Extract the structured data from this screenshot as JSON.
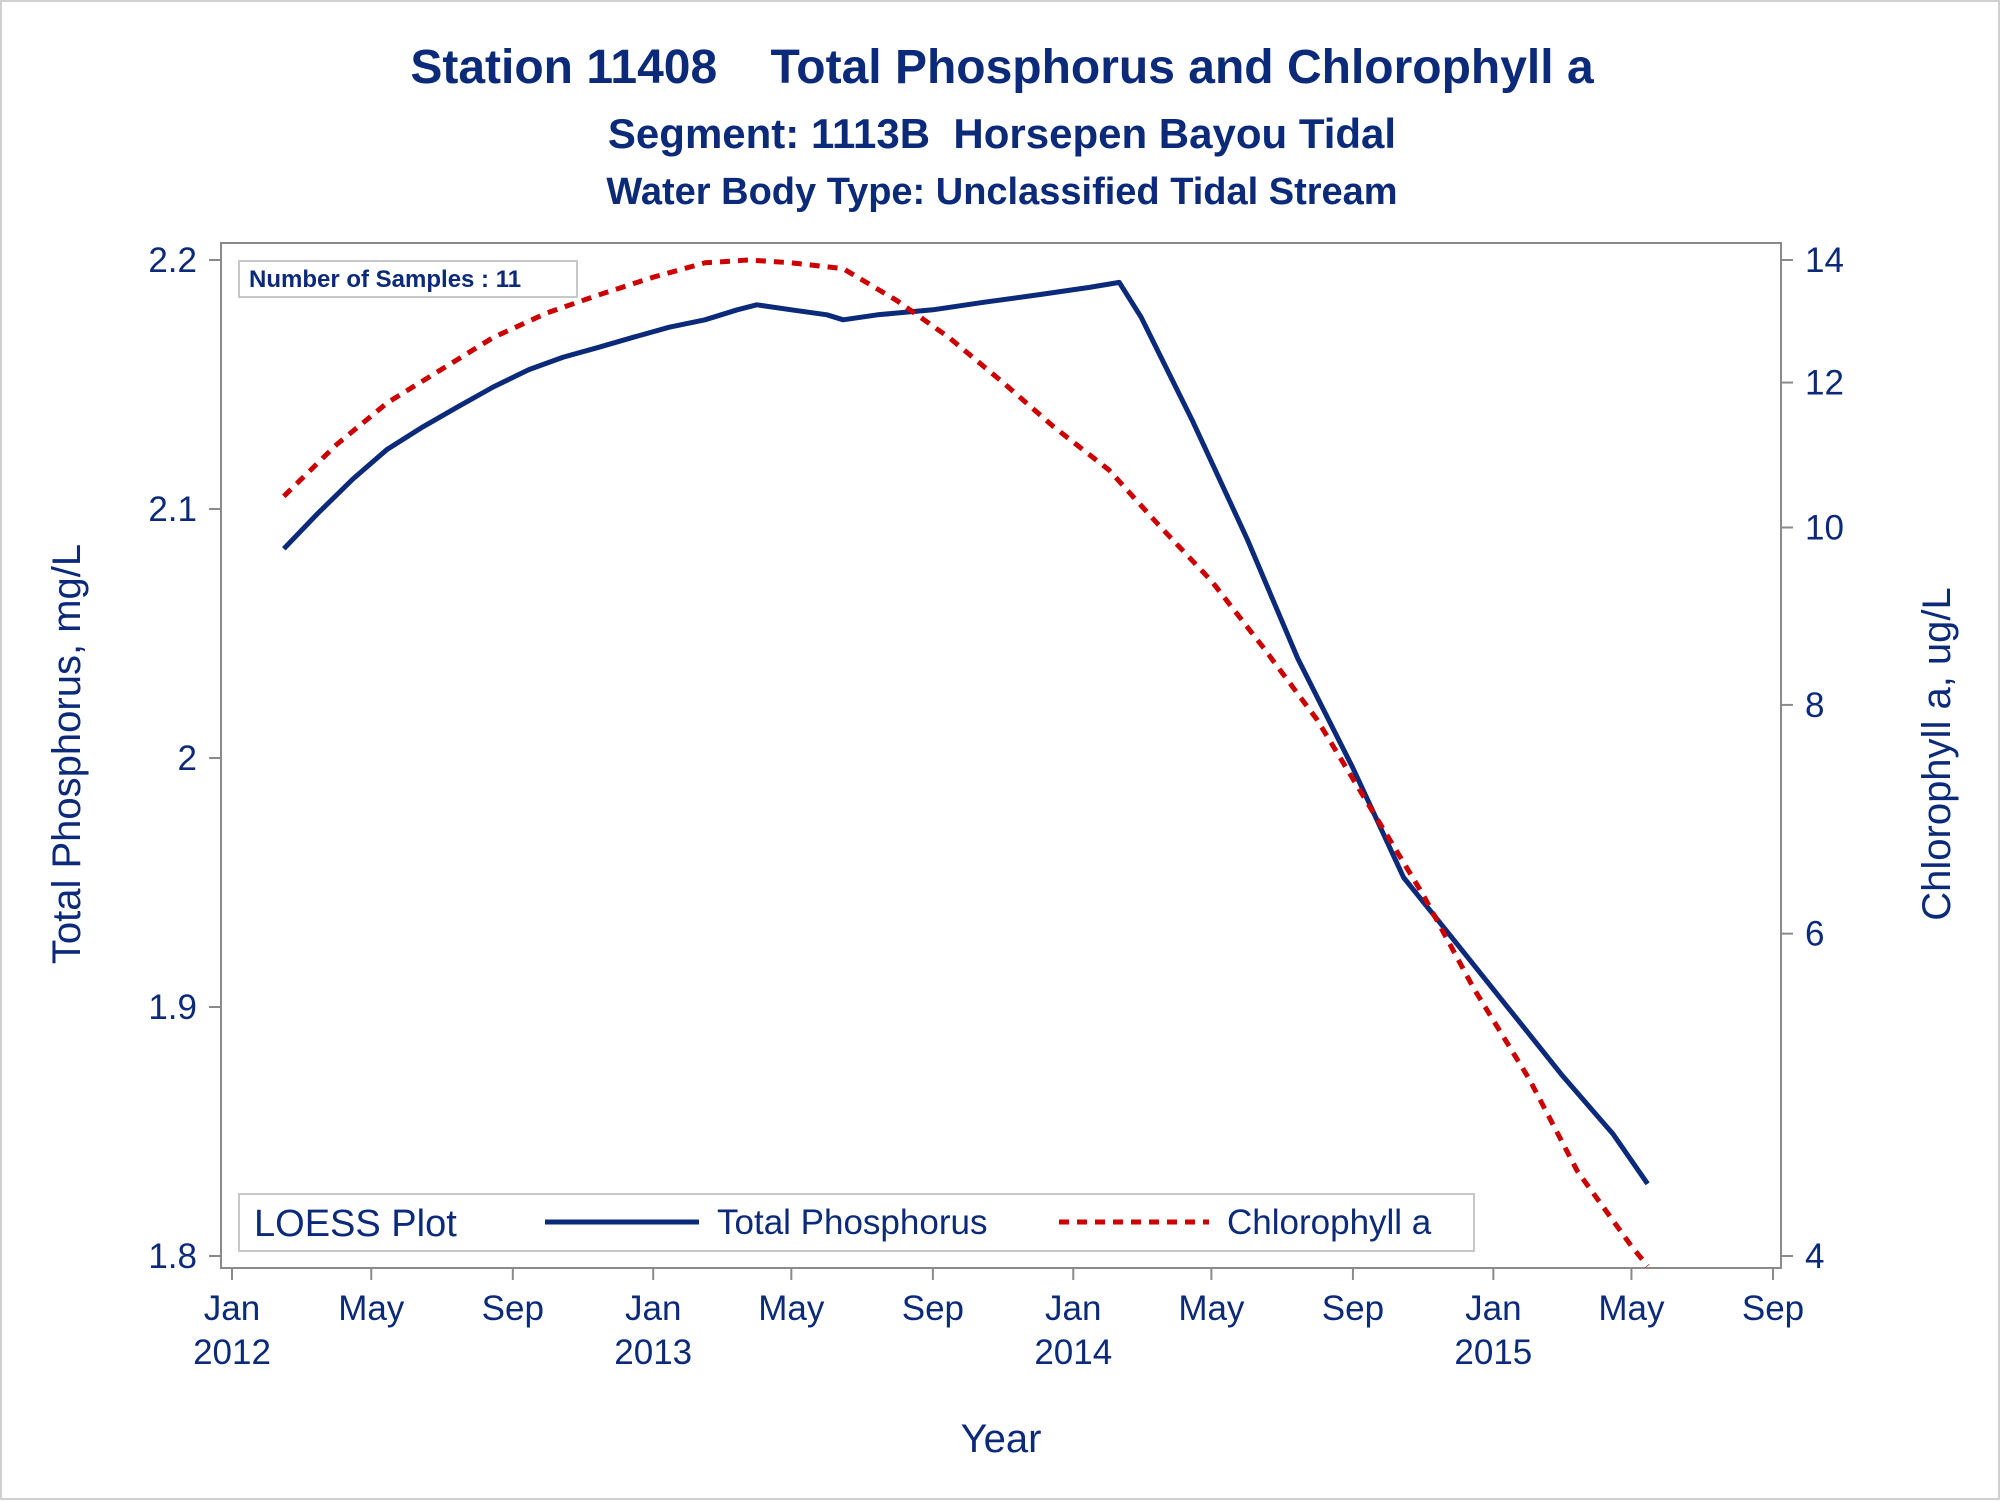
{
  "titles": {
    "line1": "Station 11408    Total Phosphorus and Chlorophyll a",
    "line2": "Segment: 1113B  Horsepen Bayou Tidal",
    "line3": "Water Body Type: Unclassified Tidal Stream"
  },
  "colors": {
    "text": "#0b2a7a",
    "phosphorus": "#0b2a7a",
    "chlorophyll": "#cc0000",
    "axis": "#8a8a8a"
  },
  "chart_data": {
    "type": "line",
    "title": "Station 11408    Total Phosphorus and Chlorophyll a",
    "subtitles": [
      "Segment: 1113B  Horsepen Bayou Tidal",
      "Water Body Type: Unclassified Tidal Stream"
    ],
    "xlabel": "Year",
    "ylabel_left": "Total Phosphorus, mg/L",
    "ylabel_right": "Chlorophyll a, ug/L",
    "xlim": [
      "2012-01-01",
      "2015-09-01"
    ],
    "ylim_left": [
      1.8,
      2.2
    ],
    "ylim_right": [
      4,
      14
    ],
    "right_axis_scale": "log",
    "x_ticks": [
      {
        "date": "2012-01-01",
        "label1": "Jan",
        "label2": "2012"
      },
      {
        "date": "2012-05-01",
        "label1": "May",
        "label2": ""
      },
      {
        "date": "2012-09-01",
        "label1": "Sep",
        "label2": ""
      },
      {
        "date": "2013-01-01",
        "label1": "Jan",
        "label2": "2013"
      },
      {
        "date": "2013-05-01",
        "label1": "May",
        "label2": ""
      },
      {
        "date": "2013-09-01",
        "label1": "Sep",
        "label2": ""
      },
      {
        "date": "2014-01-01",
        "label1": "Jan",
        "label2": "2014"
      },
      {
        "date": "2014-05-01",
        "label1": "May",
        "label2": ""
      },
      {
        "date": "2014-09-01",
        "label1": "Sep",
        "label2": ""
      },
      {
        "date": "2015-01-01",
        "label1": "Jan",
        "label2": "2015"
      },
      {
        "date": "2015-05-01",
        "label1": "May",
        "label2": ""
      },
      {
        "date": "2015-09-01",
        "label1": "Sep",
        "label2": ""
      }
    ],
    "y_ticks_left": [
      {
        "value": 1.8,
        "label": "1.8"
      },
      {
        "value": 1.9,
        "label": "1.9"
      },
      {
        "value": 2.0,
        "label": "2"
      },
      {
        "value": 2.1,
        "label": "2.1"
      },
      {
        "value": 2.2,
        "label": "2.2"
      }
    ],
    "y_ticks_right": [
      {
        "value": 4,
        "label": "4"
      },
      {
        "value": 6,
        "label": "6"
      },
      {
        "value": 8,
        "label": "8"
      },
      {
        "value": 10,
        "label": "10"
      },
      {
        "value": 12,
        "label": "12"
      },
      {
        "value": 14,
        "label": "14"
      }
    ],
    "annotation": "Number of Samples : 11",
    "legend": {
      "title": "LOESS Plot",
      "position": "bottom-left"
    },
    "series": [
      {
        "name": "Total Phosphorus",
        "axis": "left",
        "style": "solid",
        "points": [
          [
            "2012-02-15",
            2.084
          ],
          [
            "2012-03-15",
            2.098
          ],
          [
            "2012-04-15",
            2.112
          ],
          [
            "2012-05-15",
            2.124
          ],
          [
            "2012-06-15",
            2.133
          ],
          [
            "2012-07-15",
            2.141
          ],
          [
            "2012-08-15",
            2.149
          ],
          [
            "2012-09-15",
            2.156
          ],
          [
            "2012-10-15",
            2.161
          ],
          [
            "2012-11-15",
            2.165
          ],
          [
            "2012-12-15",
            2.169
          ],
          [
            "2013-01-15",
            2.173
          ],
          [
            "2013-02-15",
            2.176
          ],
          [
            "2013-03-15",
            2.18
          ],
          [
            "2013-04-01",
            2.182
          ],
          [
            "2013-05-01",
            2.18
          ],
          [
            "2013-06-01",
            2.178
          ],
          [
            "2013-06-15",
            2.176
          ],
          [
            "2013-07-15",
            2.178
          ],
          [
            "2013-09-01",
            2.18
          ],
          [
            "2013-10-15",
            2.183
          ],
          [
            "2013-12-01",
            2.186
          ],
          [
            "2014-01-15",
            2.189
          ],
          [
            "2014-02-10",
            2.191
          ],
          [
            "2014-03-01",
            2.177
          ],
          [
            "2014-04-15",
            2.135
          ],
          [
            "2014-06-01",
            2.088
          ],
          [
            "2014-07-15",
            2.04
          ],
          [
            "2014-09-01",
            1.996
          ],
          [
            "2014-10-15",
            1.952
          ],
          [
            "2014-12-01",
            1.925
          ],
          [
            "2015-01-15",
            1.899
          ],
          [
            "2015-03-01",
            1.873
          ],
          [
            "2015-04-15",
            1.849
          ],
          [
            "2015-05-15",
            1.829
          ]
        ]
      },
      {
        "name": "Chlorophyll a",
        "axis": "right",
        "style": "dashed",
        "points": [
          [
            "2012-02-15",
            10.4
          ],
          [
            "2012-04-01",
            11.1
          ],
          [
            "2012-05-15",
            11.7
          ],
          [
            "2012-07-01",
            12.2
          ],
          [
            "2012-08-15",
            12.7
          ],
          [
            "2012-10-01",
            13.1
          ],
          [
            "2012-11-15",
            13.4
          ],
          [
            "2013-01-01",
            13.7
          ],
          [
            "2013-02-15",
            13.95
          ],
          [
            "2013-03-25",
            14.0
          ],
          [
            "2013-05-01",
            13.95
          ],
          [
            "2013-06-15",
            13.85
          ],
          [
            "2013-08-01",
            13.3
          ],
          [
            "2013-09-15",
            12.7
          ],
          [
            "2013-11-01",
            12.0
          ],
          [
            "2013-12-15",
            11.35
          ],
          [
            "2014-02-01",
            10.75
          ],
          [
            "2014-03-15",
            10.05
          ],
          [
            "2014-05-01",
            9.35
          ],
          [
            "2014-06-15",
            8.6
          ],
          [
            "2014-08-01",
            7.85
          ],
          [
            "2014-09-15",
            7.05
          ],
          [
            "2014-11-01",
            6.3
          ],
          [
            "2014-12-15",
            5.6
          ],
          [
            "2015-02-01",
            5.0
          ],
          [
            "2015-03-15",
            4.45
          ],
          [
            "2015-05-01",
            4.05
          ],
          [
            "2015-05-15",
            3.95
          ]
        ]
      }
    ]
  }
}
